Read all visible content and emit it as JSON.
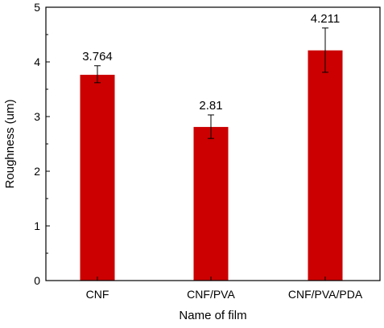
{
  "chart_data": {
    "type": "bar",
    "categories": [
      "CNF",
      "CNF/PVA",
      "CNF/PVA/PDA"
    ],
    "values": [
      3.764,
      2.81,
      4.211
    ],
    "data_labels": [
      "3.764",
      "2.81",
      "4.211"
    ],
    "error_bars": [
      {
        "low": 3.62,
        "high": 3.93
      },
      {
        "low": 2.6,
        "high": 3.03
      },
      {
        "low": 3.81,
        "high": 4.62
      }
    ],
    "xlabel": "Name of film",
    "ylabel": "Roughness (um)",
    "ylim": [
      0,
      5
    ],
    "yticks": [
      0,
      1,
      2,
      3,
      4,
      5
    ],
    "ytick_labels": [
      "0",
      "1",
      "2",
      "3",
      "4",
      "5"
    ],
    "grid": false,
    "bar_color": "#cc0000"
  }
}
